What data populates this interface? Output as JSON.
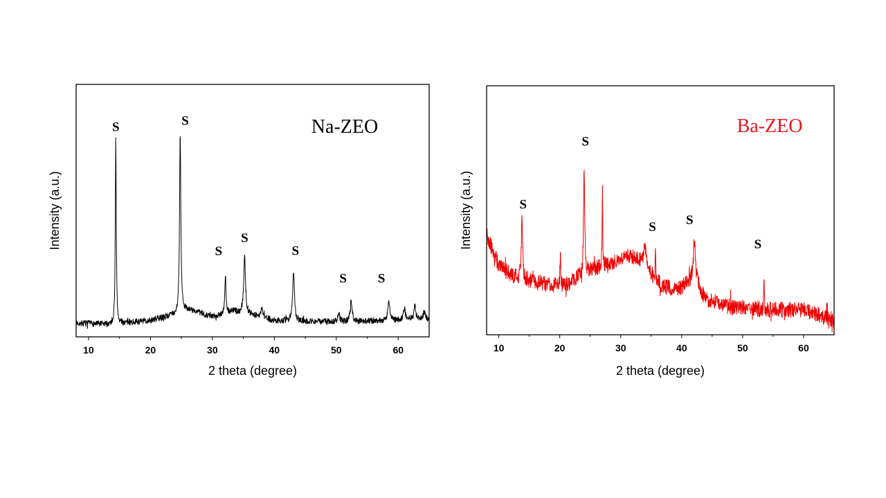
{
  "chart_data": [
    {
      "type": "line",
      "title": "Na-ZEO",
      "title_color": "#000000",
      "line_color": "#000000",
      "xlabel": "2 theta (degree)",
      "ylabel": "Intensity (a.u.)",
      "xlim": [
        8,
        65
      ],
      "ylim": [
        0,
        100
      ],
      "xticks": [
        10,
        20,
        30,
        40,
        50,
        60
      ],
      "xtick_labels": [
        "10",
        "20",
        "30",
        "40",
        "50",
        "60"
      ],
      "y_tick_labels_shown": false,
      "grid": false,
      "legend": "none",
      "title_placement": "top-right",
      "baseline": [
        [
          8,
          5.5
        ],
        [
          13,
          5
        ],
        [
          20,
          6.5
        ],
        [
          24,
          9
        ],
        [
          26,
          11
        ],
        [
          30,
          8
        ],
        [
          33,
          10
        ],
        [
          36,
          9
        ],
        [
          40,
          6.5
        ],
        [
          50,
          6
        ],
        [
          65,
          7
        ]
      ],
      "noise": 1.2,
      "peaks": [
        {
          "x": 14.4,
          "height": 78.6,
          "width": 0.12,
          "marker": "S"
        },
        {
          "x": 24.8,
          "height": 80.3,
          "width": 0.16,
          "marker": "S"
        },
        {
          "x": 32.1,
          "height": 24.9,
          "width": 0.14,
          "marker": "S"
        },
        {
          "x": 33.5,
          "height": 10.5,
          "width": 0.4,
          "marker": ""
        },
        {
          "x": 35.2,
          "height": 32.3,
          "width": 0.22,
          "marker": "S"
        },
        {
          "x": 38.0,
          "height": 12.0,
          "width": 0.2,
          "marker": ""
        },
        {
          "x": 43.1,
          "height": 26.6,
          "width": 0.22,
          "marker": "S"
        },
        {
          "x": 50.4,
          "height": 9.6,
          "width": 0.2,
          "marker": ""
        },
        {
          "x": 52.4,
          "height": 14.5,
          "width": 0.24,
          "marker": "S"
        },
        {
          "x": 58.5,
          "height": 14.5,
          "width": 0.24,
          "marker": "S"
        },
        {
          "x": 61.0,
          "height": 11.5,
          "width": 0.22,
          "marker": ""
        },
        {
          "x": 62.7,
          "height": 12.6,
          "width": 0.22,
          "marker": ""
        },
        {
          "x": 64.2,
          "height": 10.0,
          "width": 0.25,
          "marker": ""
        }
      ],
      "markers": [
        {
          "text": "S",
          "x": 14.4,
          "y": 81.5
        },
        {
          "text": "S",
          "x": 25.6,
          "y": 84.0
        },
        {
          "text": "S",
          "x": 31.0,
          "y": 32.3
        },
        {
          "text": "S",
          "x": 35.2,
          "y": 37.5
        },
        {
          "text": "S",
          "x": 43.4,
          "y": 32.5
        },
        {
          "text": "S",
          "x": 51.1,
          "y": 21.5
        },
        {
          "text": "S",
          "x": 57.3,
          "y": 21.5
        }
      ]
    },
    {
      "type": "line",
      "title": "Ba-ZEO",
      "title_color": "#e8141c",
      "line_color": "#ee0000",
      "xlabel": "2 theta (degree)",
      "ylabel": "Intensity (a.u.)",
      "xlim": [
        8,
        65
      ],
      "ylim": [
        0,
        100
      ],
      "xticks": [
        10,
        20,
        30,
        40,
        50,
        60
      ],
      "xtick_labels": [
        "10",
        "20",
        "30",
        "40",
        "50",
        "60"
      ],
      "y_tick_labels_shown": false,
      "grid": false,
      "legend": "none",
      "title_placement": "top-right",
      "baseline": [
        [
          8,
          40
        ],
        [
          9,
          34
        ],
        [
          10,
          28
        ],
        [
          12,
          24
        ],
        [
          15,
          22
        ],
        [
          18,
          20
        ],
        [
          21,
          20
        ],
        [
          23,
          23
        ],
        [
          25,
          26
        ],
        [
          28,
          28
        ],
        [
          31,
          32
        ],
        [
          33,
          30
        ],
        [
          35,
          24
        ],
        [
          37,
          19
        ],
        [
          40,
          19
        ],
        [
          42,
          22
        ],
        [
          44,
          14
        ],
        [
          48,
          11
        ],
        [
          55,
          10
        ],
        [
          60,
          10
        ],
        [
          65,
          6
        ]
      ],
      "noise": 3.2,
      "peaks": [
        {
          "x": 13.8,
          "height": 49.5,
          "width": 0.14,
          "marker": "S"
        },
        {
          "x": 20.1,
          "height": 35.0,
          "width": 0.06,
          "marker": ""
        },
        {
          "x": 24.0,
          "height": 68.5,
          "width": 0.14,
          "marker": "S"
        },
        {
          "x": 27.0,
          "height": 59.5,
          "width": 0.08,
          "marker": ""
        },
        {
          "x": 34.0,
          "height": 36.0,
          "width": 0.35,
          "marker": ""
        },
        {
          "x": 35.7,
          "height": 35.0,
          "width": 0.07,
          "marker": "S"
        },
        {
          "x": 42.1,
          "height": 37.5,
          "width": 0.3,
          "marker": "S"
        },
        {
          "x": 53.5,
          "height": 24.0,
          "width": 0.06,
          "marker": "S"
        }
      ],
      "markers": [
        {
          "text": "S",
          "x": 14.0,
          "y": 50.7
        },
        {
          "text": "S",
          "x": 24.2,
          "y": 76.0
        },
        {
          "text": "S",
          "x": 35.2,
          "y": 41.6
        },
        {
          "text": "S",
          "x": 41.3,
          "y": 44.4
        },
        {
          "text": "S",
          "x": 52.5,
          "y": 34.7
        }
      ]
    }
  ]
}
